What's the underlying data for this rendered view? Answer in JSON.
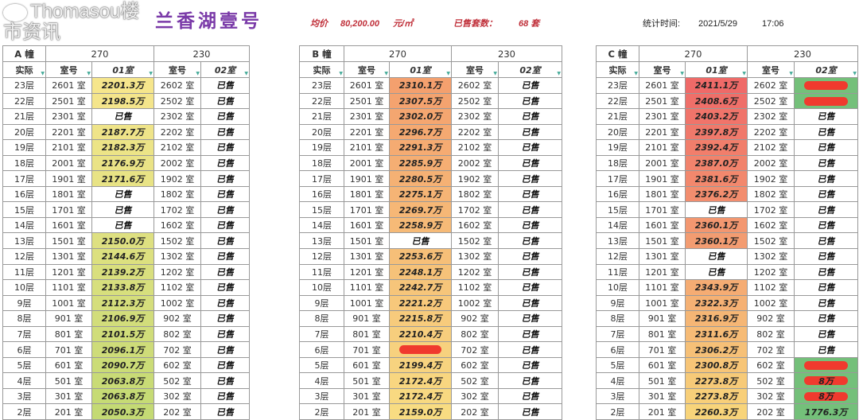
{
  "header": {
    "title": "兰香湖壹号",
    "avg_price_label": "均价",
    "avg_price_value": "80,200.00",
    "avg_price_unit": "元/㎡",
    "sold_label": "已售套数：",
    "sold_value": "68 套",
    "stat_time_label": "统计时间:",
    "stat_date": "2021/5/29",
    "stat_time": "17:06"
  },
  "columns": [
    "实际",
    "室号",
    "01室",
    "室号",
    "02室"
  ],
  "floors": [
    "23层",
    "22层",
    "21层",
    "20层",
    "19层",
    "18层",
    "17层",
    "16层",
    "15层",
    "14层",
    "13层",
    "12层",
    "11层",
    "10层",
    "9层",
    "8层",
    "7层",
    "6层",
    "5层",
    "4层",
    "3层",
    "2层"
  ],
  "rooms01": [
    "2601 室",
    "2501 室",
    "2301 室",
    "2201 室",
    "2101 室",
    "2001 室",
    "1901 室",
    "1801 室",
    "1701 室",
    "1601 室",
    "1501 室",
    "1301 室",
    "1201 室",
    "1101 室",
    "1001 室",
    "901 室",
    "801 室",
    "701 室",
    "601 室",
    "501 室",
    "301 室",
    "201 室"
  ],
  "rooms02": [
    "2602 室",
    "2502 室",
    "2302 室",
    "2202 室",
    "2102 室",
    "2002 室",
    "1902 室",
    "1802 室",
    "1702 室",
    "1602 室",
    "1502 室",
    "1302 室",
    "1202 室",
    "1102 室",
    "1002 室",
    "902 室",
    "802 室",
    "702 室",
    "602 室",
    "502 室",
    "302 室",
    "202 室"
  ],
  "sold_text": "已售",
  "buildings": [
    {
      "label": "A 幢",
      "area01": "270",
      "area02": "230",
      "color_top": "#f6e68c",
      "color_bottom": "#c4da74",
      "units01": [
        "2201.3万",
        "2198.5万",
        "已售",
        "2187.7万",
        "2182.3万",
        "2176.9万",
        "2171.6万",
        "已售",
        "已售",
        "已售",
        "2150.0万",
        "2144.6万",
        "2139.2万",
        "2133.8万",
        "2112.3万",
        "2106.9万",
        "2101.5万",
        "2096.1万",
        "2090.7万",
        "2063.8万",
        "2063.8万",
        "2050.3万"
      ],
      "units02": [
        "已售",
        "已售",
        "已售",
        "已售",
        "已售",
        "已售",
        "已售",
        "已售",
        "已售",
        "已售",
        "已售",
        "已售",
        "已售",
        "已售",
        "已售",
        "已售",
        "已售",
        "已售",
        "已售",
        "已售",
        "已售",
        "已售"
      ]
    },
    {
      "label": "B 幢",
      "area01": "270",
      "area02": "230",
      "color_top": "#f4a06e",
      "color_bottom": "#f8dc82",
      "units01": [
        "2310.1万",
        "2307.5万",
        "2302.0万",
        "2296.7万",
        "2291.3万",
        "2285.9万",
        "2280.5万",
        "2275.1万",
        "2269.7万",
        "2258.9万",
        "已售",
        "2253.6万",
        "2248.1万",
        "2242.7万",
        "2221.2万",
        "2215.8万",
        "2210.4万",
        {
          "text": "",
          "redacted": true
        },
        "2199.4万",
        "2172.4万",
        "2172.4万",
        "2159.0万"
      ],
      "units02": [
        "已售",
        "已售",
        "已售",
        "已售",
        "已售",
        "已售",
        "已售",
        "已售",
        "已售",
        "已售",
        "已售",
        "已售",
        "已售",
        "已售",
        "已售",
        "已售",
        "已售",
        "已售",
        "已售",
        "已售",
        "已售",
        "已售"
      ]
    },
    {
      "label": "C 幢",
      "area01": "270",
      "area02": "230",
      "color_top": "#ef6a68",
      "color_bottom": "#f8d47a",
      "green": "#74c07a",
      "units01": [
        "2411.1万",
        "2408.6万",
        "2403.2万",
        "2397.8万",
        "2392.4万",
        "2387.0万",
        "2381.6万",
        "2376.2万",
        "已售",
        "2360.1万",
        "2360.1万",
        "已售",
        "已售",
        "2343.9万",
        "2322.3万",
        "2316.9万",
        "2311.6万",
        "2306.2万",
        "2300.8万",
        "2273.8万",
        "2273.8万",
        "2260.3万"
      ],
      "units02": [
        {
          "text": "",
          "redacted": true
        },
        {
          "text": "",
          "redacted": true
        },
        "已售",
        "已售",
        "已售",
        "已售",
        "已售",
        "已售",
        "已售",
        "已售",
        "已售",
        "已售",
        "已售",
        "已售",
        "已售",
        "已售",
        "已售",
        "已售",
        {
          "text": "",
          "redacted": true
        },
        {
          "text": "8万",
          "redacted": true
        },
        {
          "text": "8万",
          "redacted": true
        },
        "1776.3万"
      ]
    }
  ],
  "watermark": "Thomasou楼市资讯",
  "redaction_color": "#f03a2e"
}
